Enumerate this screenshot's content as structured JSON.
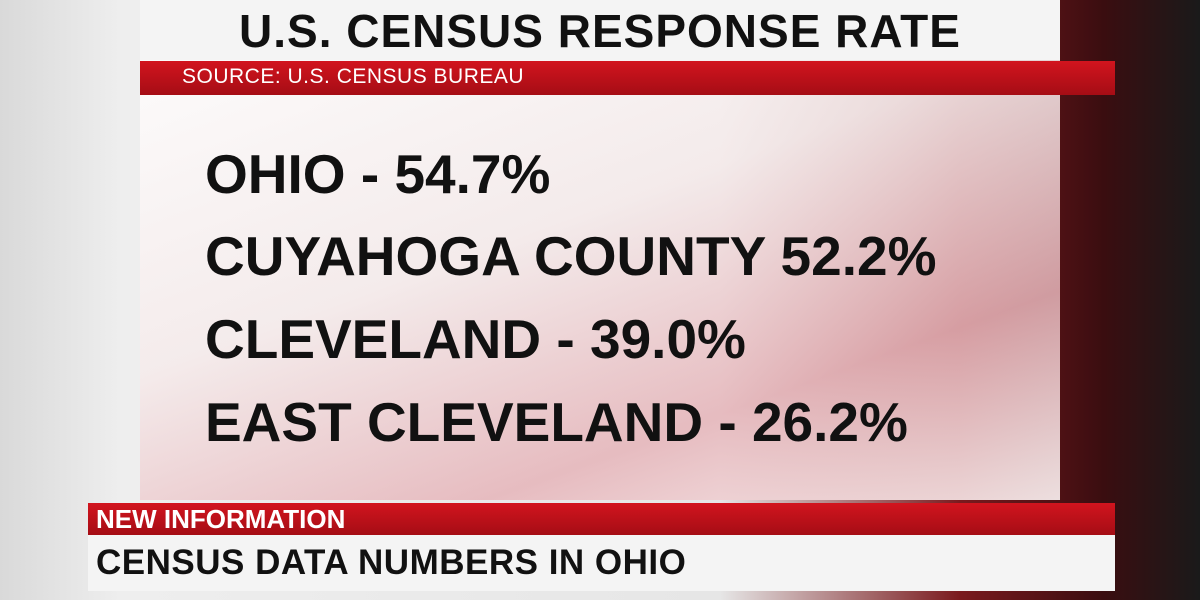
{
  "header": {
    "title": "U.S. CENSUS RESPONSE RATE",
    "source": "SOURCE: U.S. CENSUS BUREAU"
  },
  "items": [
    "OHIO - 54.7%",
    "CUYAHOGA COUNTY 52.2%",
    "CLEVELAND - 39.0%",
    "EAST CLEVELAND - 26.2%"
  ],
  "lower_third": {
    "tag": "NEW INFORMATION",
    "headline": "CENSUS DATA NUMBERS IN OHIO"
  }
}
